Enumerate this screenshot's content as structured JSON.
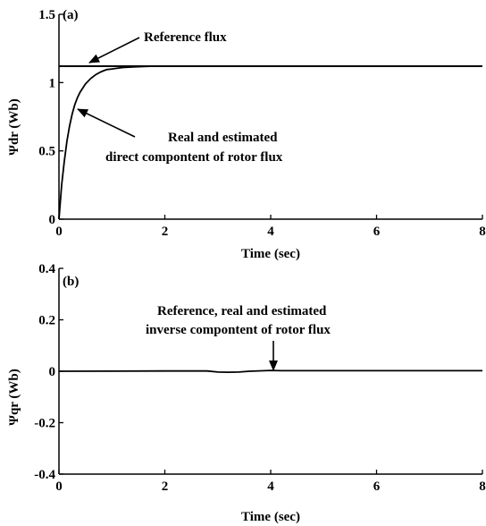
{
  "chart_data": [
    {
      "panel_label": "(a)",
      "type": "line",
      "xlabel": "Time (sec)",
      "ylabel": "Ψdr (Wb)",
      "xlim": [
        0,
        8
      ],
      "ylim": [
        0,
        1.5
      ],
      "xticks": [
        "0",
        "2",
        "4",
        "6",
        "8"
      ],
      "yticks": [
        "0",
        "0.5",
        "1",
        "1.5"
      ],
      "grid": false,
      "series": [
        {
          "role": "reference",
          "x": [
            0,
            8
          ],
          "y": [
            1.12,
            1.12
          ]
        },
        {
          "role": "real-estimated",
          "x": [
            0,
            0.05,
            0.1,
            0.15,
            0.2,
            0.25,
            0.3,
            0.35,
            0.4,
            0.5,
            0.6,
            0.7,
            0.8,
            0.9,
            1.0,
            1.2,
            1.4,
            1.6,
            1.8
          ],
          "y": [
            0.0,
            0.25,
            0.42,
            0.57,
            0.68,
            0.77,
            0.84,
            0.89,
            0.93,
            0.99,
            1.03,
            1.06,
            1.08,
            1.095,
            1.1,
            1.11,
            1.115,
            1.118,
            1.12
          ]
        }
      ],
      "annotations": [
        {
          "text": "Reference flux"
        },
        {
          "text": "Real  and estimated"
        },
        {
          "text": "direct compontent of rotor flux"
        }
      ]
    },
    {
      "panel_label": "(b)",
      "type": "line",
      "xlabel": "Time (sec)",
      "ylabel": "Ψqr (Wb)",
      "xlim": [
        0,
        8
      ],
      "ylim": [
        -0.4,
        0.4
      ],
      "xticks": [
        "0",
        "2",
        "4",
        "6",
        "8"
      ],
      "yticks": [
        "0.4",
        "0.2",
        "0",
        "-0.2",
        "-0.4"
      ],
      "grid": false,
      "series": [
        {
          "role": "reference-real-estimated",
          "x": [
            0,
            2,
            2.8,
            3.0,
            3.2,
            3.4,
            3.6,
            4.0,
            4.2,
            8
          ],
          "y": [
            0,
            0.001,
            0.001,
            -0.003,
            -0.004,
            -0.003,
            0.0,
            0.003,
            0.002,
            0.002
          ]
        }
      ],
      "annotations": [
        {
          "text": "Reference, real  and estimated"
        },
        {
          "text": "inverse compontent of rotor flux"
        }
      ]
    }
  ]
}
